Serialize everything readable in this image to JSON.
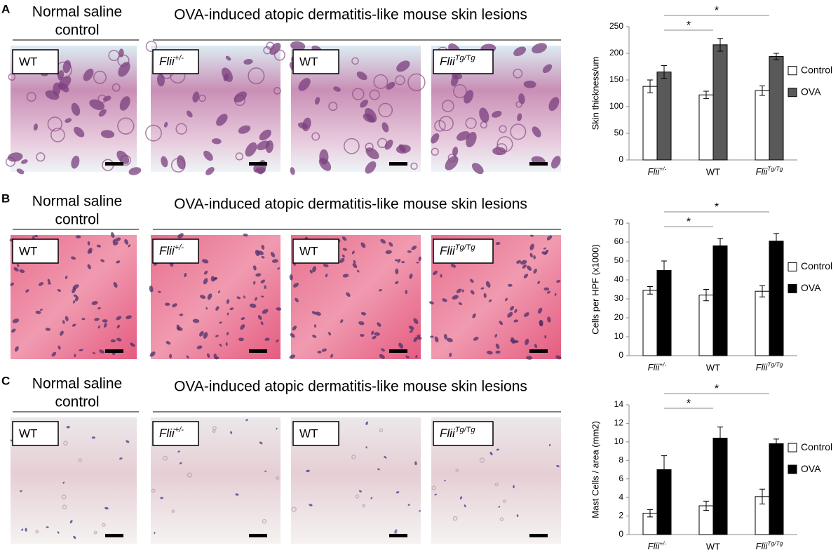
{
  "panels": [
    {
      "letter": "A",
      "control_heading": [
        "Normal saline",
        "control"
      ],
      "ova_heading": "OVA-induced atopic dermatitis-like mouse skin lesions",
      "image_labels": [
        "WT",
        "Flii+/-",
        "WT",
        "FliiTg/Tg"
      ]
    },
    {
      "letter": "B",
      "control_heading": [
        "Normal saline",
        "control"
      ],
      "ova_heading": "OVA-induced atopic dermatitis-like mouse skin lesions",
      "image_labels": [
        "WT",
        "Flii+/-",
        "WT",
        "FliiTg/Tg"
      ]
    },
    {
      "letter": "C",
      "control_heading": [
        "Normal saline",
        "control"
      ],
      "ova_heading": "OVA-induced atopic dermatitis-like mouse skin lesions",
      "image_labels": [
        "WT",
        "Flii+/-",
        "WT",
        "FliiTg/Tg"
      ]
    }
  ],
  "chart_data": [
    {
      "type": "bar",
      "y_label": "Skin thickness/um",
      "categories": [
        "Flii+/-",
        "WT",
        "FliiTg/Tg"
      ],
      "series": [
        {
          "name": "Control",
          "color": "#ffffff",
          "values": [
            138,
            122,
            130
          ],
          "errors": [
            12,
            7,
            9
          ]
        },
        {
          "name": "OVA",
          "color": "#595959",
          "values": [
            165,
            216,
            194
          ],
          "errors": [
            12,
            12,
            6
          ]
        }
      ],
      "ylim": [
        0,
        250
      ],
      "yticks": [
        0,
        50,
        100,
        150,
        200,
        250
      ],
      "annotations": [
        "*",
        "*"
      ],
      "legend": "right"
    },
    {
      "type": "bar",
      "y_label": "Cells per HPF (x1000)",
      "categories": [
        "Flii+/-",
        "WT",
        "FliiTg/Tg"
      ],
      "series": [
        {
          "name": "Control",
          "color": "#ffffff",
          "values": [
            34.5,
            32,
            34
          ],
          "errors": [
            2,
            3,
            3
          ]
        },
        {
          "name": "OVA",
          "color": "#000000",
          "values": [
            45,
            58,
            60.5
          ],
          "errors": [
            5,
            4,
            4
          ]
        }
      ],
      "ylim": [
        0,
        70
      ],
      "yticks": [
        0,
        10,
        20,
        30,
        40,
        50,
        60,
        70
      ],
      "annotations": [
        "*",
        "*"
      ],
      "legend": "right"
    },
    {
      "type": "bar",
      "y_label": "Mast Cells / area (mm2)",
      "categories": [
        "Flii+/-",
        "WT",
        "FliiTg/Tg"
      ],
      "series": [
        {
          "name": "Control",
          "color": "#ffffff",
          "values": [
            2.3,
            3.1,
            4.1
          ],
          "errors": [
            0.4,
            0.5,
            0.8
          ]
        },
        {
          "name": "OVA",
          "color": "#000000",
          "values": [
            7,
            10.4,
            9.8
          ],
          "errors": [
            1.5,
            1.2,
            0.5
          ]
        }
      ],
      "ylim": [
        0,
        14
      ],
      "yticks": [
        0,
        2,
        4,
        6,
        8,
        10,
        12,
        14
      ],
      "annotations": [
        "*",
        "*"
      ],
      "legend": "right"
    }
  ]
}
